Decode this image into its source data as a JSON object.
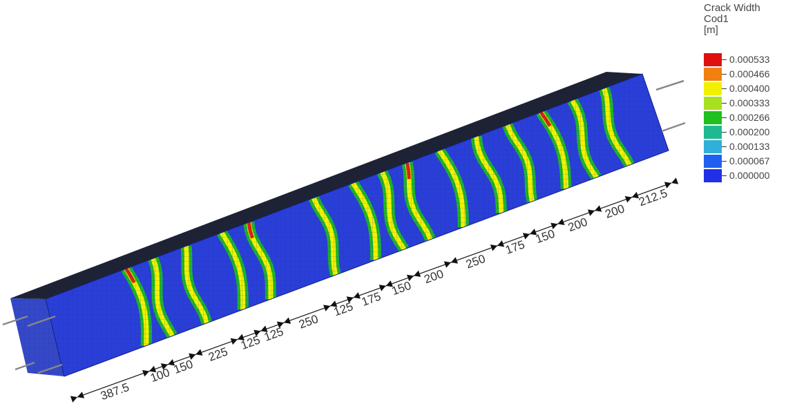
{
  "legend": {
    "title_line1": "Crack Width",
    "title_line2": "Cod1",
    "title_line3": "[m]",
    "entries": [
      {
        "value": "0.000533",
        "color": "#e01010"
      },
      {
        "value": "0.000466",
        "color": "#f08010"
      },
      {
        "value": "0.000400",
        "color": "#f0f000"
      },
      {
        "value": "0.000333",
        "color": "#a8e020"
      },
      {
        "value": "0.000266",
        "color": "#20c020"
      },
      {
        "value": "0.000200",
        "color": "#20b890"
      },
      {
        "value": "0.000133",
        "color": "#30b0d8"
      },
      {
        "value": "0.000067",
        "color": "#2060f0"
      },
      {
        "value": "0.000000",
        "color": "#2030e8"
      }
    ]
  },
  "dimensions": [
    "387.5",
    "100",
    "150",
    "225",
    "125",
    "125",
    "250",
    "125",
    "175",
    "150",
    "200",
    "250",
    "175",
    "150",
    "200",
    "200",
    "212.5"
  ],
  "colors": {
    "beam_side": "#2a3fd8",
    "beam_top": "#1d2334",
    "beam_end": "#3549c8",
    "crack_outer": "#1db52a",
    "crack_inner": "#f2f200",
    "crack_peak": "#e02010"
  }
}
